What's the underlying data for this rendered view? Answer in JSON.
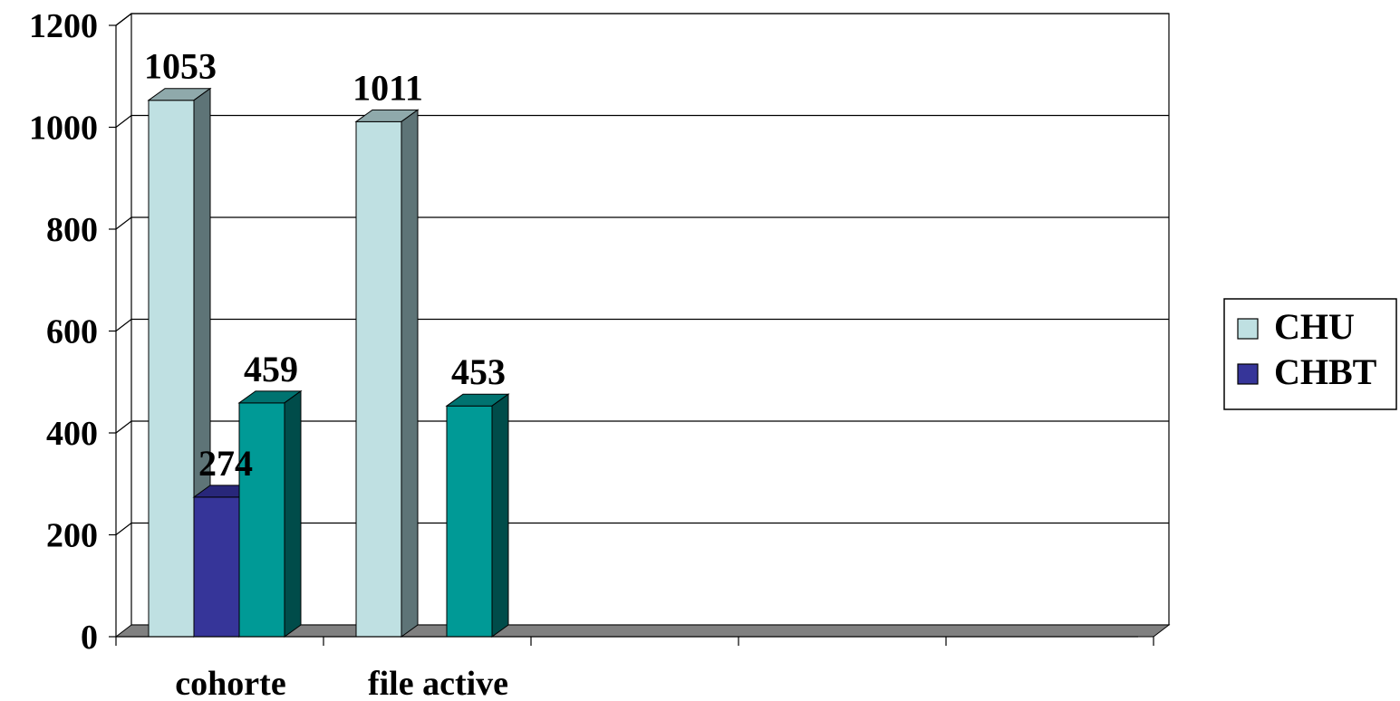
{
  "chart_data": {
    "type": "bar",
    "style": "3d-clustered-column",
    "categories": [
      "cohorte",
      "file active",
      "",
      "",
      ""
    ],
    "series": [
      {
        "name": "CHU",
        "values": [
          1053,
          1011,
          null,
          null,
          null
        ],
        "labels": [
          "1053",
          "1011",
          "",
          "",
          ""
        ]
      },
      {
        "name": "CHBT",
        "values": [
          274,
          null,
          null,
          null,
          null
        ],
        "labels": [
          "274",
          "",
          "",
          "",
          ""
        ]
      },
      {
        "name": "",
        "values": [
          459,
          453,
          null,
          null,
          null
        ],
        "labels": [
          "459",
          "453",
          "",
          "",
          ""
        ]
      }
    ],
    "ylim": [
      0,
      1200
    ],
    "yticks": [
      "0",
      "200",
      "400",
      "600",
      "800",
      "1000",
      "1200"
    ],
    "grid": true,
    "legend_position": "right",
    "legend": [
      "CHU",
      "CHBT"
    ]
  },
  "colors": {
    "series": [
      "#BFE0E2",
      "#363599",
      "#009A96"
    ],
    "series_side": [
      "#5E7477",
      "#1C1B66",
      "#004C4A"
    ],
    "series_top": [
      "#8FA9AB",
      "#28277A",
      "#007370"
    ],
    "floor": "#808080",
    "gridline": "#000000"
  }
}
